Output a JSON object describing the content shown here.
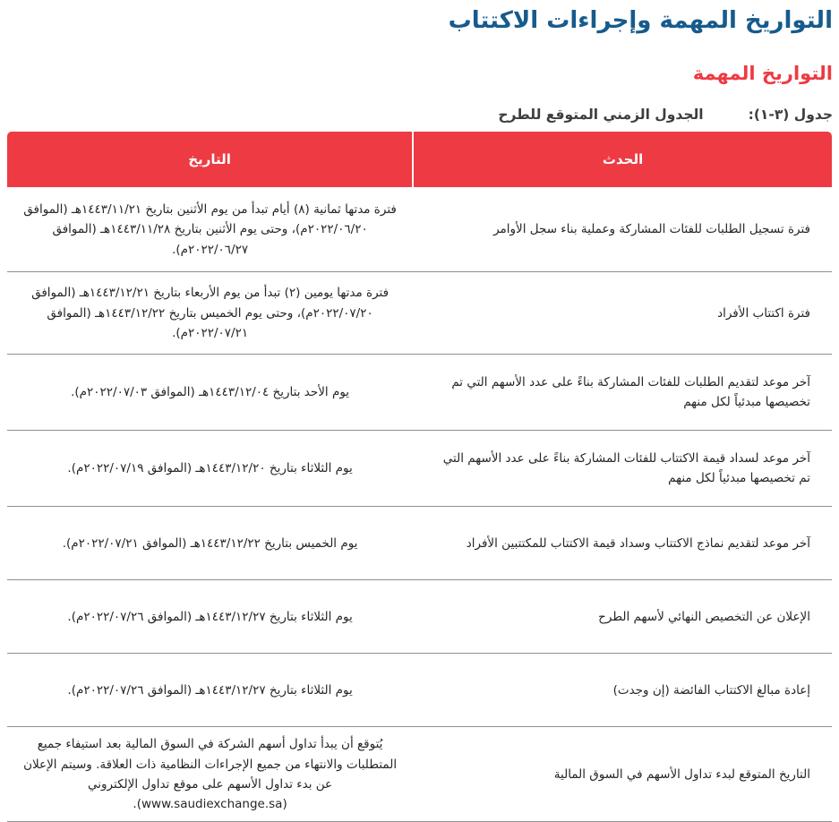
{
  "page": {
    "title": "التواريخ المهمة وإجراءات الاكتتاب",
    "subtitle": "التواريخ المهمة",
    "caption_label": "جدول (٣-١):",
    "caption_title": "الجدول الزمني المتوقع للطرح"
  },
  "colors": {
    "accent_red": "#EE3A42",
    "title_blue": "#175B8D",
    "body_text": "#262626",
    "row_divider": "#8f8f8f"
  },
  "table": {
    "headers": {
      "event": "الحدث",
      "date": "التاريخ"
    },
    "rows": [
      {
        "event": "فترة تسجيل الطلبات للفئات المشاركة وعملية بناء سجل الأوامر",
        "date": "فترة مدتها ثمانية (٨) أيام تبدأ من يوم الأثنين بتاريخ ١٤٤٣/١١/٢١هـ (الموافق ٢٠٢٢/٠٦/٢٠م)، وحتى يوم الأثنين بتاريخ ١٤٤٣/١١/٢٨هـ (الموافق ٢٠٢٢/٠٦/٢٧م)."
      },
      {
        "event": "فترة اكتتاب الأفراد",
        "date": "فترة مدتها يومين (٢) تبدأ من يوم الأربعاء بتاريخ ١٤٤٣/١٢/٢١هـ (الموافق ٢٠٢٢/٠٧/٢٠م)، وحتى يوم الخميس بتاريخ ١٤٤٣/١٢/٢٢هـ (الموافق ٢٠٢٢/٠٧/٢١م)."
      },
      {
        "event": "آخر موعد لتقديم الطلبات للفئات المشاركة بناءً على عدد الأسهم التي تم تخصيصها مبدئياً لكل منهم",
        "date": "يوم الأحد بتاريخ ١٤٤٣/١٢/٠٤هـ (الموافق ٢٠٢٢/٠٧/٠٣م)."
      },
      {
        "event": "آخر موعد لسداد قيمة الاكتتاب للفئات المشاركة بناءً على عدد الأسهم التي تم تخصيصها مبدئياً لكل منهم",
        "date": "يوم الثلاثاء بتاريخ ١٤٤٣/١٢/٢٠هـ (الموافق ٢٠٢٢/٠٧/١٩م)."
      },
      {
        "event": "آخر موعد لتقديم نماذج الاكتتاب وسداد قيمة الاكتتاب للمكتتبين الأفراد",
        "date": "يوم الخميس بتاريخ ١٤٤٣/١٢/٢٢هـ (الموافق ٢٠٢٢/٠٧/٢١م)."
      },
      {
        "event": "الإعلان عن التخصيص النهائي لأسهم الطرح",
        "date": "يوم الثلاثاء بتاريخ ١٤٤٣/١٢/٢٧هـ (الموافق ٢٠٢٢/٠٧/٢٦م)."
      },
      {
        "event": "إعادة مبالغ الاكتتاب الفائضة (إن وجدت)",
        "date": "يوم الثلاثاء بتاريخ ١٤٤٣/١٢/٢٧هـ (الموافق ٢٠٢٢/٠٧/٢٦م)."
      },
      {
        "event": "التاريخ المتوقع لبدء تداول الأسهم في السوق المالية",
        "date": "يُتوقع أن يبدأ تداول أسهم الشركة في السوق المالية بعد استيفاء جميع المتطلبات والانتهاء من جميع الإجراءات النظامية ذات العلاقة. وسيتم الإعلان عن بدء تداول الأسهم على موقع تداول الإلكتروني (www.saudiexchange.sa)."
      }
    ]
  }
}
